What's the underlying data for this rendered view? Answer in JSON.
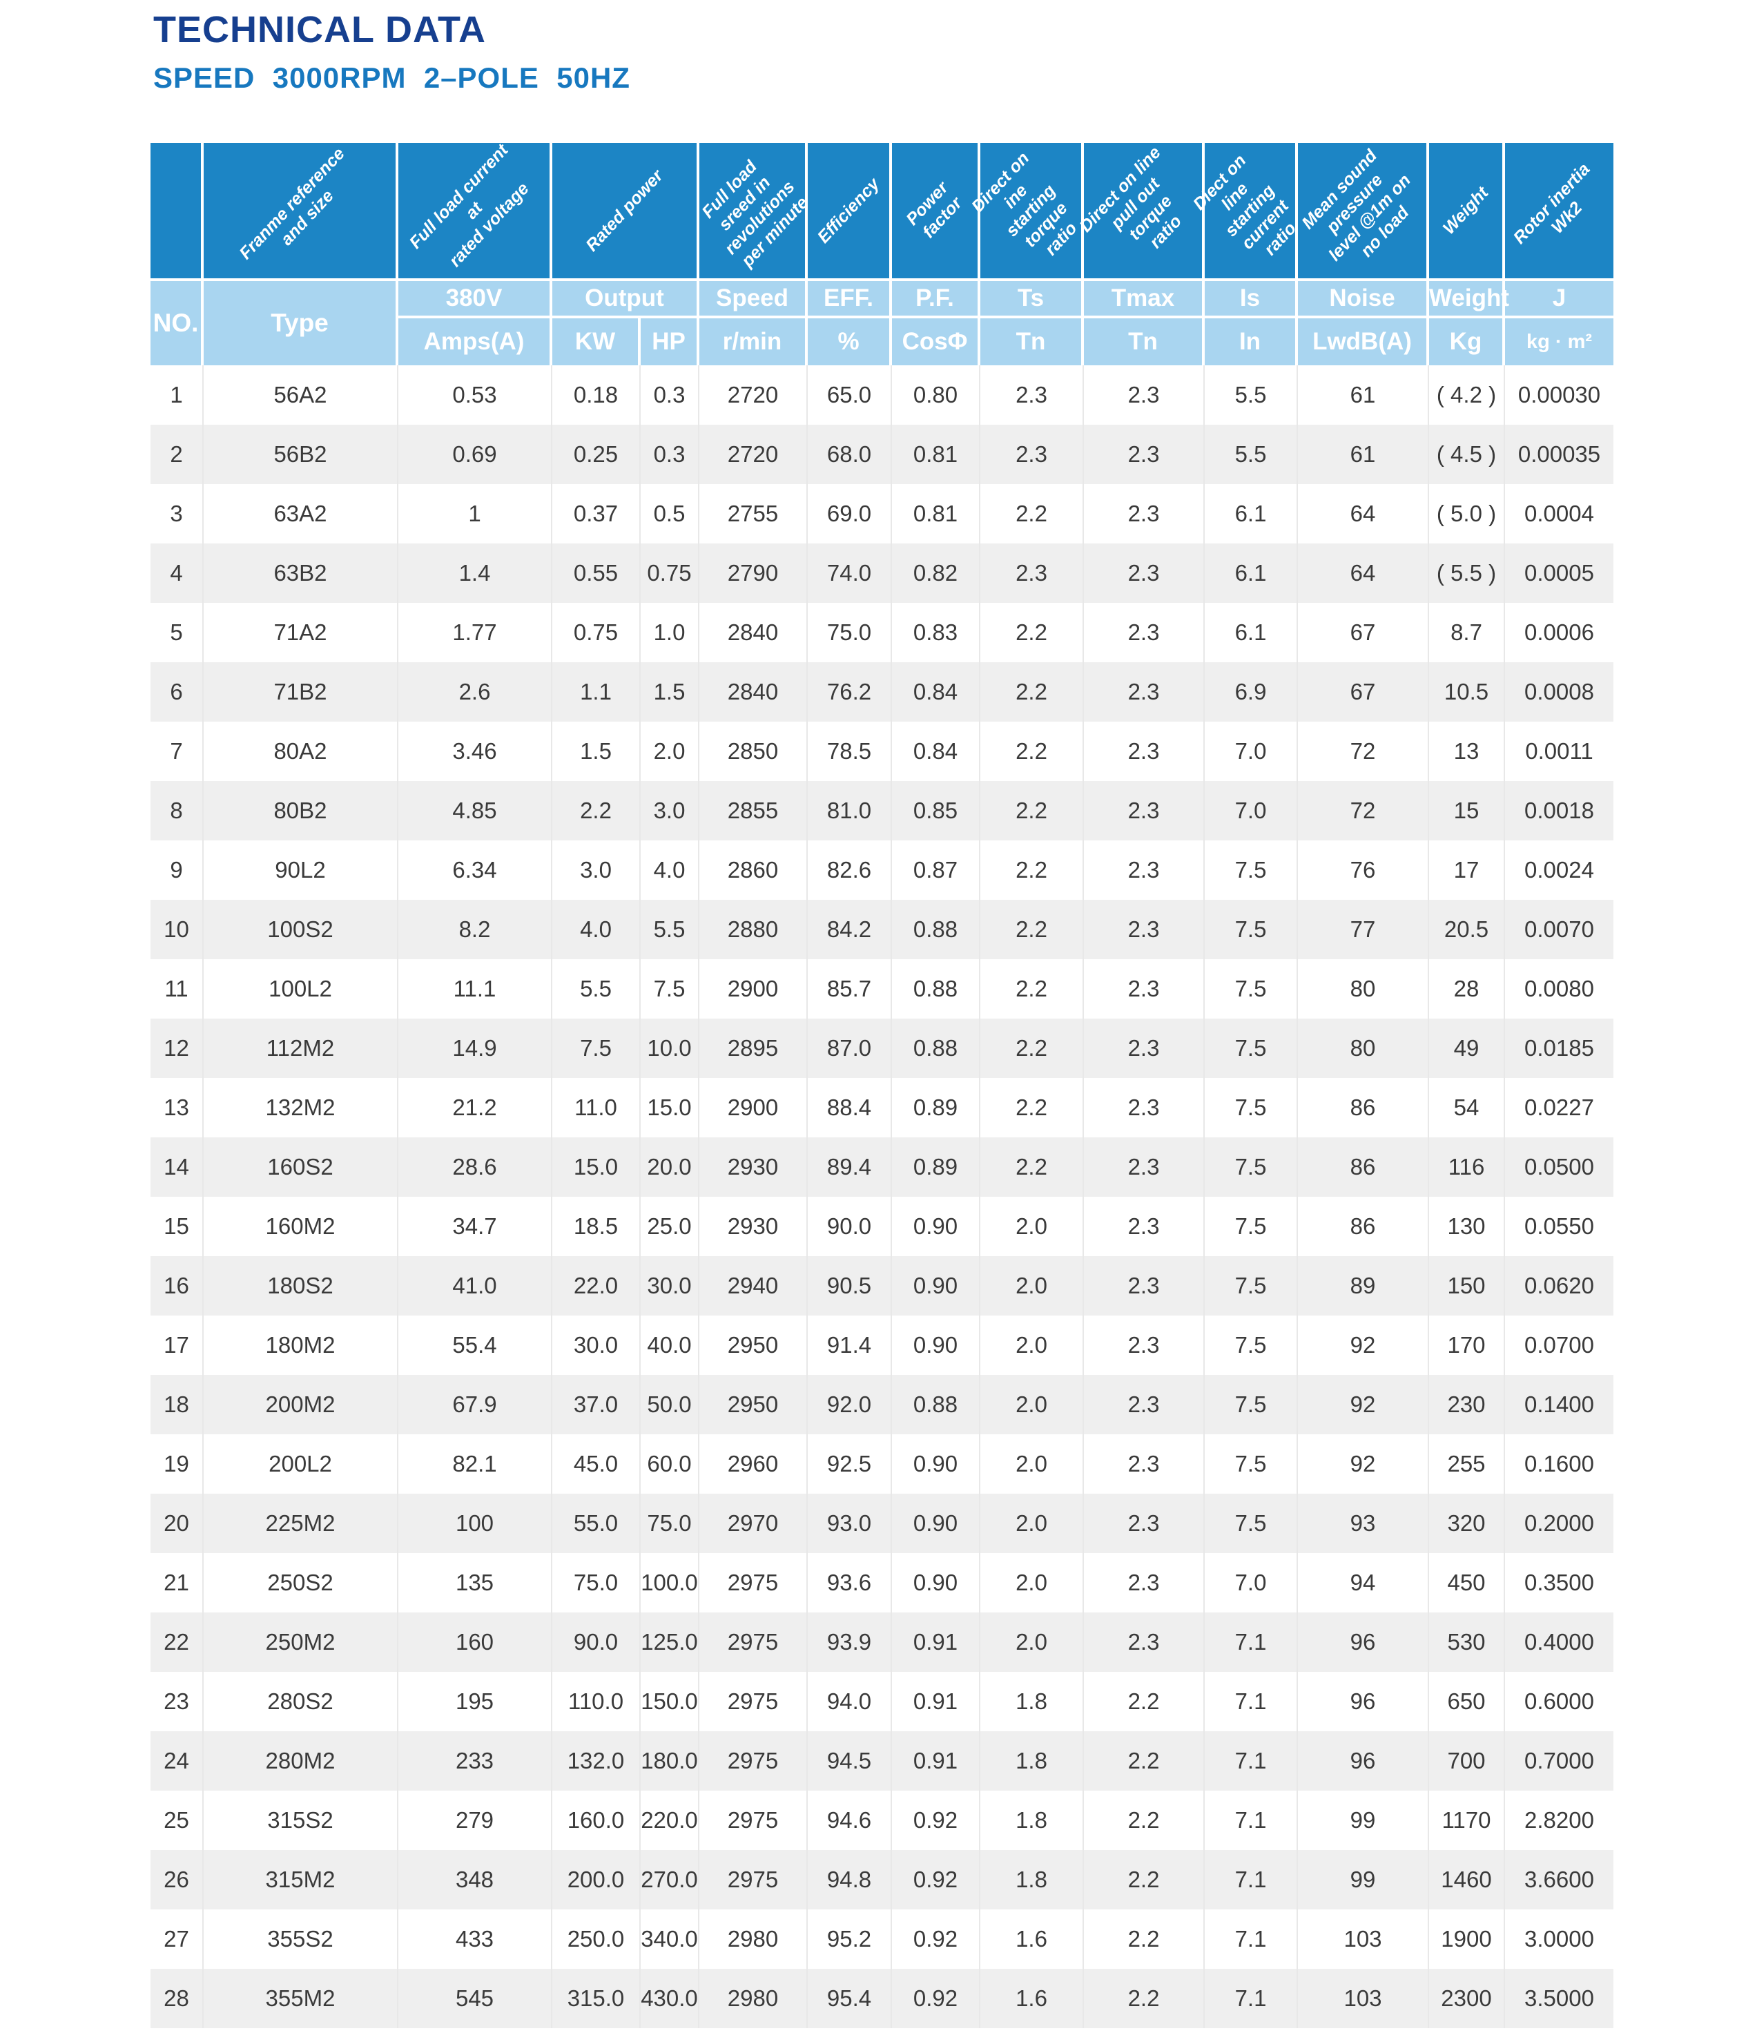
{
  "page": {
    "title": "TECHNICAL DATA",
    "subtitle": "SPEED  3000RPM  2–POLE  50HZ"
  },
  "table": {
    "column_keys": [
      "no",
      "type",
      "amps",
      "kw",
      "hp",
      "rmin",
      "eff",
      "pf",
      "ts",
      "tmax",
      "is",
      "noise",
      "weight",
      "j"
    ],
    "diagonal_headers": {
      "frame": "Franme reference\nand size",
      "current": "Full load current at\nrated voltage",
      "power": "Rated power",
      "speed": "Full load sreed in\nrevolutions\nper minute",
      "efficiency": "Efficiency",
      "power_factor": "Power factor",
      "ts": "Direct on ine\nstarting torque\nratio",
      "tmax": "Direct on line\npull out torque\nratio",
      "is": "Diect on line\nstarting current\nratio",
      "noise": "Mean sound\npressure\nlevel @1m on\nno load",
      "weight": "Weight",
      "inertia": "Rotor inertia Wk2"
    },
    "headers": {
      "no": "NO.",
      "type": "Type",
      "volt": "380V",
      "amps": "Amps(A)",
      "output": "Output",
      "kw": "KW",
      "hp": "HP",
      "speed": "Speed",
      "rmin": "r/min",
      "eff": "EFF.",
      "pct": "%",
      "pf": "P.F.",
      "cos": "CosΦ",
      "ts": "Ts",
      "tn1": "Tn",
      "tmax": "Tmax",
      "tn2": "Tn",
      "is": "Is",
      "in": "In",
      "noise": "Noise",
      "lw": "LwdB(A)",
      "weight": "Weight",
      "kg": "Kg",
      "j": "J",
      "kgm2": "kg · m²"
    },
    "rows": [
      {
        "cells": [
          "1",
          "56A2",
          "0.53",
          "0.18",
          "0.3",
          "2720",
          "65.0",
          "0.80",
          "2.3",
          "2.3",
          "5.5",
          "61",
          "( 4.2 )",
          "0.00030"
        ]
      },
      {
        "cells": [
          "2",
          "56B2",
          "0.69",
          "0.25",
          "0.3",
          "2720",
          "68.0",
          "0.81",
          "2.3",
          "2.3",
          "5.5",
          "61",
          "( 4.5 )",
          "0.00035"
        ]
      },
      {
        "cells": [
          "3",
          "63A2",
          "1",
          "0.37",
          "0.5",
          "2755",
          "69.0",
          "0.81",
          "2.2",
          "2.3",
          "6.1",
          "64",
          "( 5.0 )",
          "0.0004"
        ]
      },
      {
        "cells": [
          "4",
          "63B2",
          "1.4",
          "0.55",
          "0.75",
          "2790",
          "74.0",
          "0.82",
          "2.3",
          "2.3",
          "6.1",
          "64",
          "( 5.5 )",
          "0.0005"
        ]
      },
      {
        "cells": [
          "5",
          "71A2",
          "1.77",
          "0.75",
          "1.0",
          "2840",
          "75.0",
          "0.83",
          "2.2",
          "2.3",
          "6.1",
          "67",
          "8.7",
          "0.0006"
        ]
      },
      {
        "cells": [
          "6",
          "71B2",
          "2.6",
          "1.1",
          "1.5",
          "2840",
          "76.2",
          "0.84",
          "2.2",
          "2.3",
          "6.9",
          "67",
          "10.5",
          "0.0008"
        ]
      },
      {
        "cells": [
          "7",
          "80A2",
          "3.46",
          "1.5",
          "2.0",
          "2850",
          "78.5",
          "0.84",
          "2.2",
          "2.3",
          "7.0",
          "72",
          "13",
          "0.0011"
        ]
      },
      {
        "cells": [
          "8",
          "80B2",
          "4.85",
          "2.2",
          "3.0",
          "2855",
          "81.0",
          "0.85",
          "2.2",
          "2.3",
          "7.0",
          "72",
          "15",
          "0.0018"
        ]
      },
      {
        "cells": [
          "9",
          "90L2",
          "6.34",
          "3.0",
          "4.0",
          "2860",
          "82.6",
          "0.87",
          "2.2",
          "2.3",
          "7.5",
          "76",
          "17",
          "0.0024"
        ]
      },
      {
        "cells": [
          "10",
          "100S2",
          "8.2",
          "4.0",
          "5.5",
          "2880",
          "84.2",
          "0.88",
          "2.2",
          "2.3",
          "7.5",
          "77",
          "20.5",
          "0.0070"
        ]
      },
      {
        "cells": [
          "11",
          "100L2",
          "11.1",
          "5.5",
          "7.5",
          "2900",
          "85.7",
          "0.88",
          "2.2",
          "2.3",
          "7.5",
          "80",
          "28",
          "0.0080"
        ]
      },
      {
        "cells": [
          "12",
          "112M2",
          "14.9",
          "7.5",
          "10.0",
          "2895",
          "87.0",
          "0.88",
          "2.2",
          "2.3",
          "7.5",
          "80",
          "49",
          "0.0185"
        ]
      },
      {
        "cells": [
          "13",
          "132M2",
          "21.2",
          "11.0",
          "15.0",
          "2900",
          "88.4",
          "0.89",
          "2.2",
          "2.3",
          "7.5",
          "86",
          "54",
          "0.0227"
        ]
      },
      {
        "cells": [
          "14",
          "160S2",
          "28.6",
          "15.0",
          "20.0",
          "2930",
          "89.4",
          "0.89",
          "2.2",
          "2.3",
          "7.5",
          "86",
          "116",
          "0.0500"
        ]
      },
      {
        "cells": [
          "15",
          "160M2",
          "34.7",
          "18.5",
          "25.0",
          "2930",
          "90.0",
          "0.90",
          "2.0",
          "2.3",
          "7.5",
          "86",
          "130",
          "0.0550"
        ]
      },
      {
        "cells": [
          "16",
          "180S2",
          "41.0",
          "22.0",
          "30.0",
          "2940",
          "90.5",
          "0.90",
          "2.0",
          "2.3",
          "7.5",
          "89",
          "150",
          "0.0620"
        ]
      },
      {
        "cells": [
          "17",
          "180M2",
          "55.4",
          "30.0",
          "40.0",
          "2950",
          "91.4",
          "0.90",
          "2.0",
          "2.3",
          "7.5",
          "92",
          "170",
          "0.0700"
        ]
      },
      {
        "cells": [
          "18",
          "200M2",
          "67.9",
          "37.0",
          "50.0",
          "2950",
          "92.0",
          "0.88",
          "2.0",
          "2.3",
          "7.5",
          "92",
          "230",
          "0.1400"
        ]
      },
      {
        "cells": [
          "19",
          "200L2",
          "82.1",
          "45.0",
          "60.0",
          "2960",
          "92.5",
          "0.90",
          "2.0",
          "2.3",
          "7.5",
          "92",
          "255",
          "0.1600"
        ]
      },
      {
        "cells": [
          "20",
          "225M2",
          "100",
          "55.0",
          "75.0",
          "2970",
          "93.0",
          "0.90",
          "2.0",
          "2.3",
          "7.5",
          "93",
          "320",
          "0.2000"
        ]
      },
      {
        "cells": [
          "21",
          "250S2",
          "135",
          "75.0",
          "100.0",
          "2975",
          "93.6",
          "0.90",
          "2.0",
          "2.3",
          "7.0",
          "94",
          "450",
          "0.3500"
        ]
      },
      {
        "cells": [
          "22",
          "250M2",
          "160",
          "90.0",
          "125.0",
          "2975",
          "93.9",
          "0.91",
          "2.0",
          "2.3",
          "7.1",
          "96",
          "530",
          "0.4000"
        ]
      },
      {
        "cells": [
          "23",
          "280S2",
          "195",
          "110.0",
          "150.0",
          "2975",
          "94.0",
          "0.91",
          "1.8",
          "2.2",
          "7.1",
          "96",
          "650",
          "0.6000"
        ]
      },
      {
        "cells": [
          "24",
          "280M2",
          "233",
          "132.0",
          "180.0",
          "2975",
          "94.5",
          "0.91",
          "1.8",
          "2.2",
          "7.1",
          "96",
          "700",
          "0.7000"
        ]
      },
      {
        "cells": [
          "25",
          "315S2",
          "279",
          "160.0",
          "220.0",
          "2975",
          "94.6",
          "0.92",
          "1.8",
          "2.2",
          "7.1",
          "99",
          "1170",
          "2.8200"
        ]
      },
      {
        "cells": [
          "26",
          "315M2",
          "348",
          "200.0",
          "270.0",
          "2975",
          "94.8",
          "0.92",
          "1.8",
          "2.2",
          "7.1",
          "99",
          "1460",
          "3.6600"
        ]
      },
      {
        "cells": [
          "27",
          "355S2",
          "433",
          "250.0",
          "340.0",
          "2980",
          "95.2",
          "0.92",
          "1.6",
          "2.2",
          "7.1",
          "103",
          "1900",
          "3.0000"
        ]
      },
      {
        "cells": [
          "28",
          "355M2",
          "545",
          "315.0",
          "430.0",
          "2980",
          "95.4",
          "0.92",
          "1.6",
          "2.2",
          "7.1",
          "103",
          "2300",
          "3.5000"
        ]
      }
    ]
  }
}
